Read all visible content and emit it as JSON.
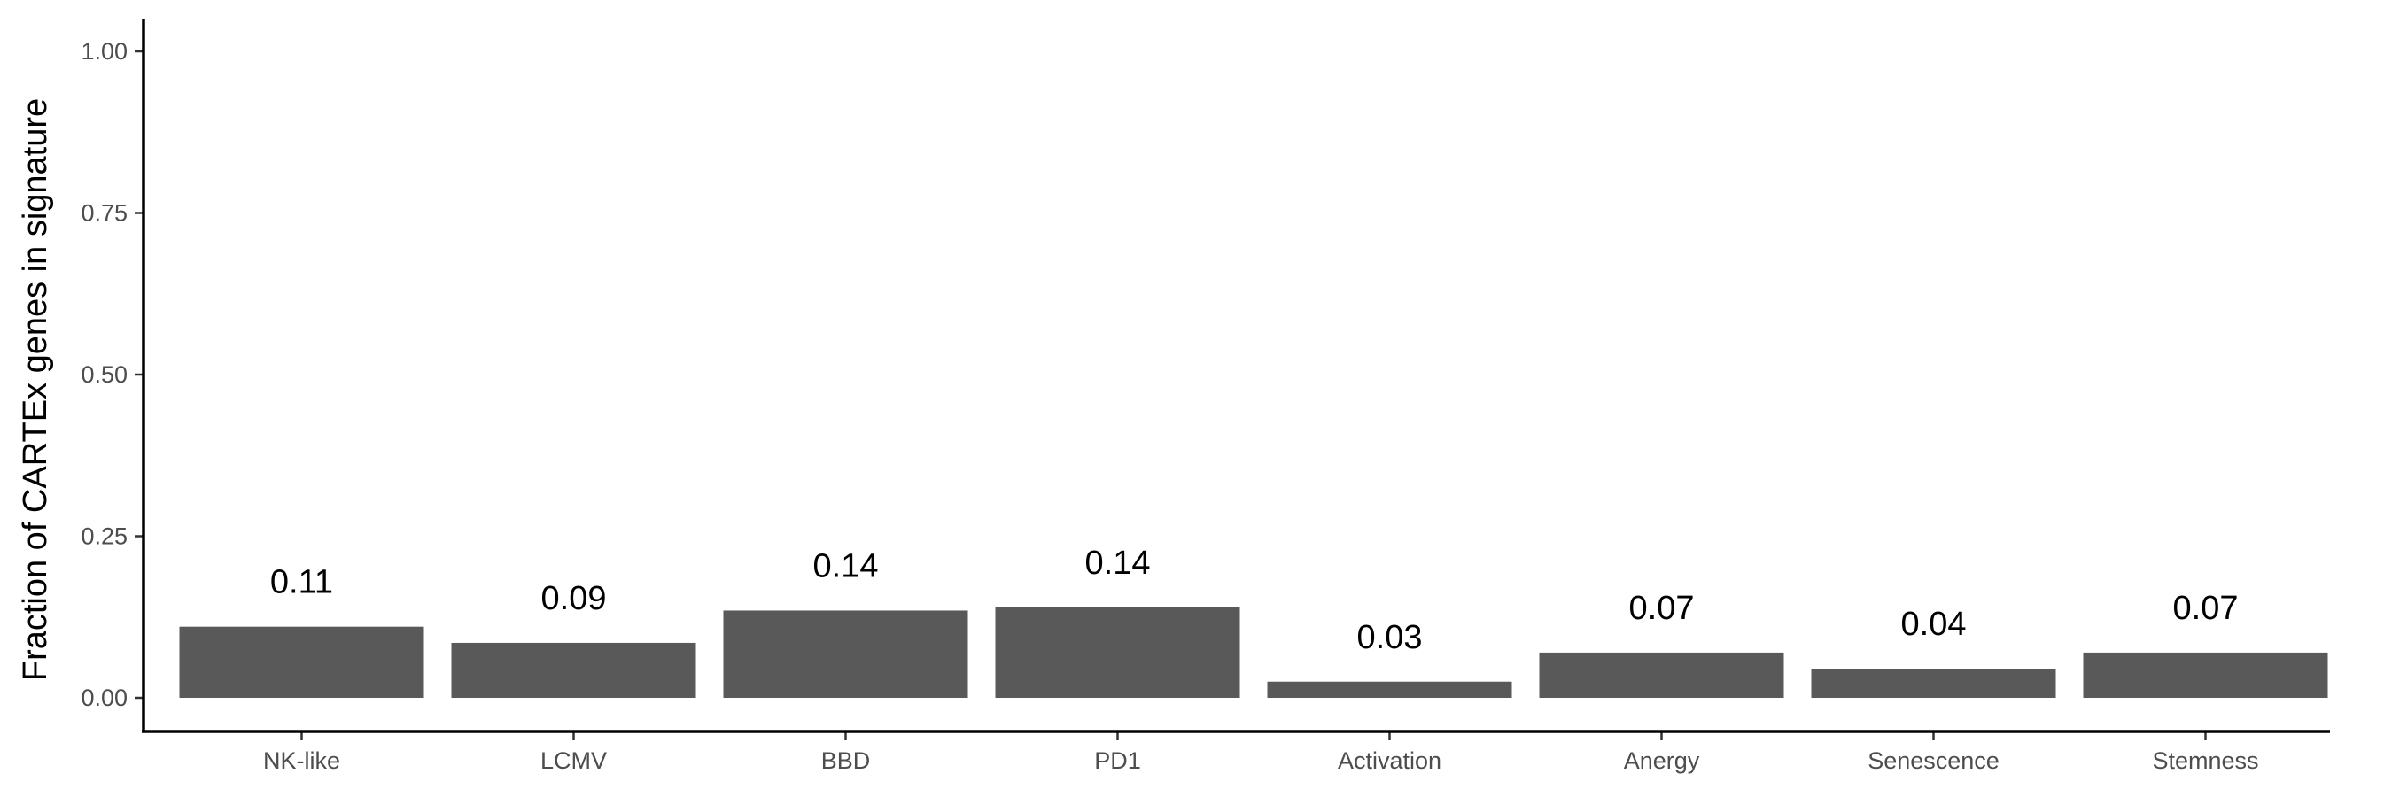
{
  "chart_data": {
    "type": "bar",
    "title": "",
    "xlabel": "",
    "ylabel": "Fraction of CARTEx genes in signature",
    "categories": [
      "NK-like",
      "LCMV",
      "BBD",
      "PD1",
      "Activation",
      "Anergy",
      "Senescence",
      "Stemness"
    ],
    "values": [
      0.11,
      0.085,
      0.135,
      0.14,
      0.025,
      0.07,
      0.045,
      0.07
    ],
    "data_labels": [
      "0.11",
      "0.09",
      "0.14",
      "0.14",
      "0.03",
      "0.07",
      "0.04",
      "0.07"
    ],
    "ylim": [
      0,
      1.0
    ],
    "yticks": [
      0.0,
      0.25,
      0.5,
      0.75,
      1.0
    ],
    "ytick_labels": [
      "0.00",
      "0.25",
      "0.50",
      "0.75",
      "1.00"
    ],
    "bar_color": "#595959",
    "grid": false,
    "legend": "none"
  }
}
